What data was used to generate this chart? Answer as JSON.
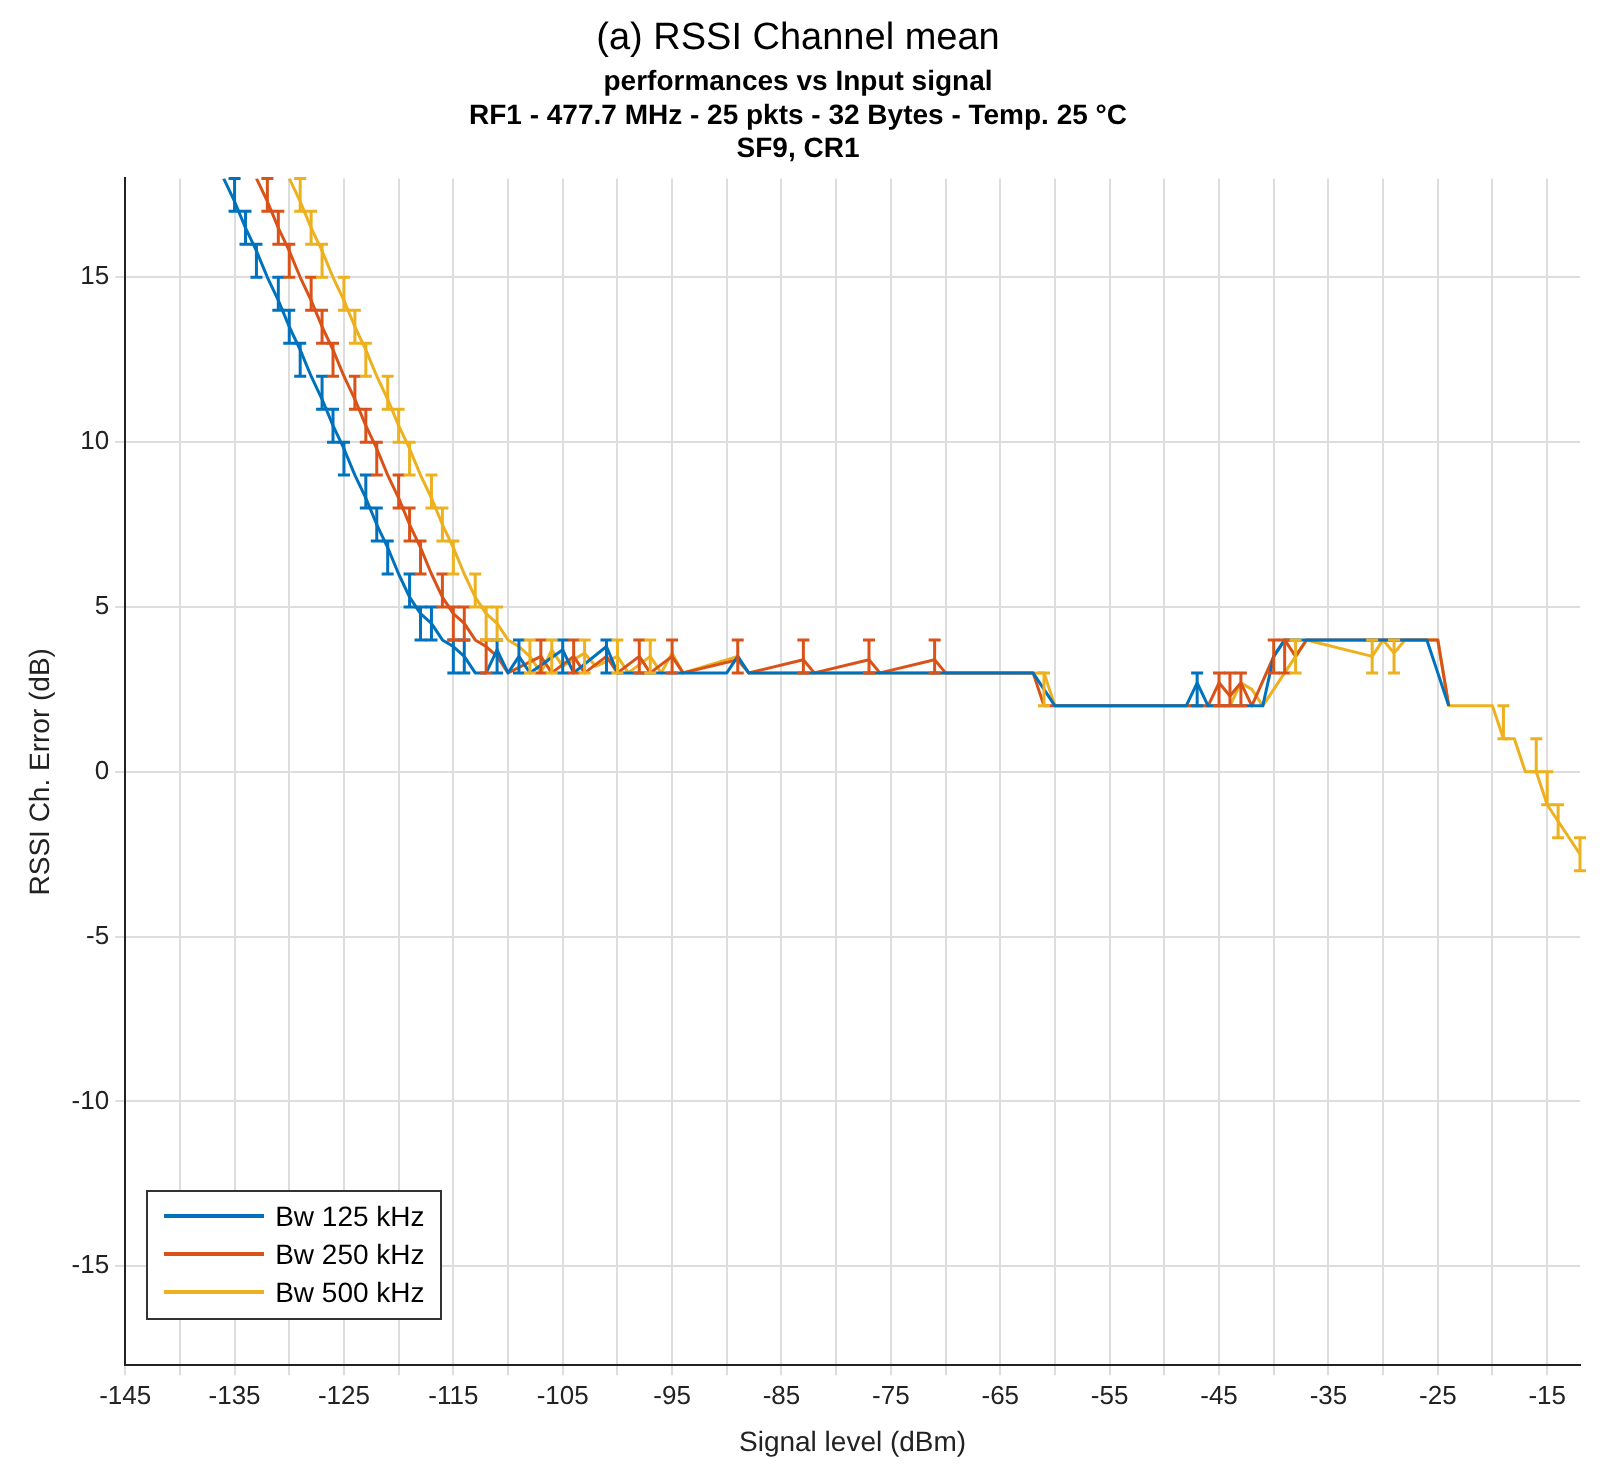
{
  "chart_data": {
    "type": "line",
    "title": "(a) RSSI Channel mean",
    "subtitle": "performances vs Input signal\nRF1 - 477.7 MHz - 25 pkts - 32 Bytes - Temp. 25 °C\nSF9, CR1",
    "xlabel": "Signal level (dBm)",
    "ylabel": "RSSI Ch. Error (dB)",
    "xlim": [
      -145,
      -12
    ],
    "ylim": [
      -18,
      18
    ],
    "xticks": [
      -145,
      {
        "value": -140,
        "label": null
      },
      -135,
      {
        "value": -130,
        "label": null
      },
      -125,
      {
        "value": -120,
        "label": null
      },
      -115,
      {
        "value": -110,
        "label": null
      },
      -105,
      {
        "value": -100,
        "label": null
      },
      -95,
      {
        "value": -90,
        "label": null
      },
      -85,
      {
        "value": -80,
        "label": null
      },
      -75,
      {
        "value": -70,
        "label": null
      },
      -65,
      {
        "value": -60,
        "label": null
      },
      -55,
      {
        "value": -50,
        "label": null
      },
      -45,
      {
        "value": -40,
        "label": null
      },
      -35,
      {
        "value": -30,
        "label": null
      },
      -25,
      {
        "value": -20,
        "label": null
      },
      -15
    ],
    "yticks": [
      -15,
      -10,
      -5,
      0,
      5,
      10,
      15
    ],
    "grid": true,
    "legend": "bottom left",
    "series": [
      {
        "name": "Bw 125 kHz",
        "color": "#0072bd",
        "x": [
          -136,
          -135,
          -134,
          -133,
          -132,
          -131,
          -130,
          -129,
          -128,
          -127,
          -126,
          -125,
          -124,
          -123,
          -122,
          -121,
          -120,
          -119,
          -118,
          -117,
          -116,
          -115,
          -114,
          -113,
          -112,
          -111,
          -110,
          -109,
          -108,
          -105,
          -104,
          -101,
          -100,
          -90,
          -89,
          -88,
          -62,
          -61,
          -60,
          -48,
          -47,
          -46,
          -41,
          -40,
          -39,
          -26,
          -25,
          -24
        ],
        "values": [
          18,
          17.3,
          16.5,
          15.8,
          15,
          14.3,
          13.5,
          12.8,
          12,
          11.3,
          10.5,
          9.8,
          9,
          8.3,
          7.5,
          6.8,
          6,
          5.3,
          4.8,
          4.5,
          4,
          3.8,
          3.5,
          3,
          3,
          3.7,
          3,
          3.5,
          3,
          3.7,
          3,
          3.8,
          3,
          3,
          3.5,
          3,
          3,
          2.5,
          2,
          2,
          2.7,
          2,
          2,
          3.5,
          4,
          4,
          3,
          2
        ],
        "errors": [
          null,
          [
            17,
            18
          ],
          [
            16,
            17
          ],
          [
            15,
            16
          ],
          null,
          [
            14,
            15
          ],
          [
            13,
            14
          ],
          [
            12,
            13
          ],
          null,
          [
            11,
            12
          ],
          [
            10,
            11
          ],
          [
            9,
            10
          ],
          null,
          [
            8,
            9
          ],
          [
            7,
            8
          ],
          [
            6,
            7
          ],
          null,
          [
            5,
            6
          ],
          [
            4,
            5
          ],
          [
            4,
            5
          ],
          null,
          [
            3,
            4
          ],
          [
            3,
            4
          ],
          null,
          null,
          [
            3,
            4
          ],
          null,
          [
            3,
            4
          ],
          null,
          [
            3,
            4
          ],
          null,
          [
            3,
            4
          ],
          null,
          null,
          null,
          null,
          null,
          null,
          null,
          null,
          [
            2,
            3
          ],
          null,
          null,
          null,
          null,
          null,
          null,
          null
        ]
      },
      {
        "name": "Bw 250 kHz",
        "color": "#d95319",
        "x": [
          -133,
          -132,
          -131,
          -130,
          -129,
          -128,
          -127,
          -126,
          -125,
          -124,
          -123,
          -122,
          -121,
          -120,
          -119,
          -118,
          -117,
          -116,
          -115,
          -114,
          -113,
          -112,
          -111,
          -110,
          -107,
          -106,
          -104,
          -103,
          -101,
          -100,
          -98,
          -97,
          -95,
          -94,
          -89,
          -88,
          -83,
          -82,
          -77,
          -76,
          -71,
          -70,
          -62,
          -61,
          -46,
          -45,
          -44,
          -43,
          -42,
          -40,
          -39,
          -38,
          -37,
          -25,
          -24
        ],
        "values": [
          18,
          17.3,
          16.5,
          15.8,
          15,
          14.3,
          13.5,
          12.8,
          12,
          11.3,
          10.5,
          9.8,
          9,
          8.3,
          7.5,
          6.8,
          6,
          5.3,
          4.8,
          4.5,
          4,
          3.8,
          3.5,
          3,
          3.5,
          3,
          3.5,
          3,
          3.5,
          3,
          3.5,
          3,
          3.5,
          3,
          3.4,
          3,
          3.4,
          3,
          3.4,
          3,
          3.4,
          3,
          3,
          2,
          2,
          2.7,
          2.3,
          2.7,
          2,
          3.5,
          4,
          3.5,
          4,
          4,
          2
        ],
        "errors": [
          null,
          [
            17,
            18
          ],
          [
            16,
            17
          ],
          [
            15,
            16
          ],
          null,
          [
            14,
            15
          ],
          [
            13,
            14
          ],
          [
            12,
            13
          ],
          null,
          [
            11,
            12
          ],
          [
            10,
            11
          ],
          [
            9,
            10
          ],
          null,
          [
            8,
            9
          ],
          [
            7,
            8
          ],
          [
            6,
            7
          ],
          null,
          [
            5,
            6
          ],
          [
            4,
            5
          ],
          [
            4,
            5
          ],
          null,
          [
            3,
            4
          ],
          null,
          null,
          [
            3,
            4
          ],
          null,
          [
            3,
            4
          ],
          null,
          null,
          null,
          [
            3,
            4
          ],
          null,
          [
            3,
            4
          ],
          null,
          [
            3,
            4
          ],
          null,
          [
            3,
            4
          ],
          null,
          [
            3,
            4
          ],
          null,
          [
            3,
            4
          ],
          null,
          null,
          null,
          null,
          [
            2,
            3
          ],
          [
            2,
            3
          ],
          [
            2,
            3
          ],
          null,
          [
            3,
            4
          ],
          [
            3,
            4
          ],
          null,
          null,
          null,
          null
        ]
      },
      {
        "name": "Bw 500 kHz",
        "color": "#edb120",
        "x": [
          -130,
          -129,
          -128,
          -127,
          -126,
          -125,
          -124,
          -123,
          -122,
          -121,
          -120,
          -119,
          -118,
          -117,
          -116,
          -115,
          -114,
          -113,
          -112,
          -111,
          -110,
          -109,
          -108,
          -107,
          -106,
          -105,
          -103,
          -102,
          -100,
          -99,
          -97,
          -96,
          -95,
          -94,
          -89,
          -88,
          -62,
          -61,
          -60,
          -44,
          -43,
          -42,
          -41,
          -38,
          -37,
          -31,
          -30,
          -29,
          -28,
          -25,
          -24,
          -20,
          -19,
          -18,
          -17,
          -16,
          -15,
          -14,
          -13,
          -12
        ],
        "values": [
          18,
          17.3,
          16.5,
          15.8,
          15,
          14.3,
          13.5,
          12.8,
          12,
          11.3,
          10.5,
          9.8,
          9,
          8.3,
          7.5,
          6.8,
          6,
          5.3,
          4.8,
          4.5,
          4,
          3.8,
          3.5,
          3,
          3.7,
          3.2,
          3.6,
          3.2,
          3.5,
          3,
          3.5,
          3,
          3.6,
          3,
          3.5,
          3,
          3,
          3,
          2,
          2,
          2.7,
          2.5,
          2,
          3.5,
          4,
          3.5,
          4,
          3.6,
          4,
          4,
          2,
          2,
          1,
          1,
          0,
          0,
          -1,
          -1.5,
          -2,
          -2.5
        ],
        "errors": [
          null,
          [
            17,
            18
          ],
          [
            16,
            17
          ],
          [
            15,
            16
          ],
          null,
          [
            14,
            15
          ],
          [
            13,
            14
          ],
          [
            12,
            13
          ],
          null,
          [
            11,
            12
          ],
          [
            10,
            11
          ],
          [
            9,
            10
          ],
          null,
          [
            8,
            9
          ],
          [
            7,
            8
          ],
          [
            6,
            7
          ],
          null,
          [
            5,
            6
          ],
          [
            4,
            5
          ],
          [
            4,
            5
          ],
          null,
          null,
          [
            3,
            4
          ],
          null,
          [
            3,
            4
          ],
          null,
          [
            3,
            4
          ],
          null,
          [
            3,
            4
          ],
          null,
          [
            3,
            4
          ],
          null,
          null,
          null,
          null,
          null,
          null,
          [
            2,
            3
          ],
          null,
          null,
          null,
          null,
          null,
          [
            3,
            4
          ],
          null,
          [
            3,
            4
          ],
          null,
          [
            3,
            4
          ],
          null,
          null,
          null,
          null,
          [
            1,
            2
          ],
          null,
          null,
          [
            0,
            1
          ],
          [
            -1,
            0
          ],
          [
            -2,
            -1
          ],
          null,
          [
            -3,
            -2
          ]
        ]
      }
    ]
  }
}
